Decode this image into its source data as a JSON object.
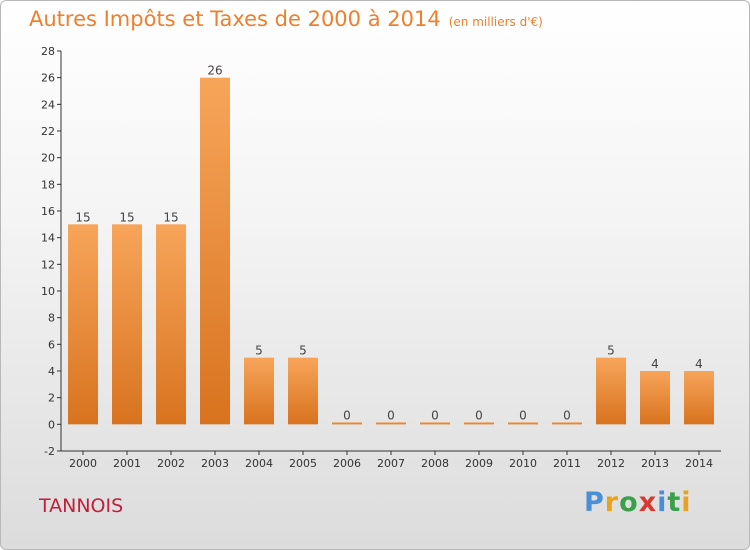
{
  "header": {
    "title": "Autres Impôts et Taxes de 2000 à 2014",
    "unit": "(en milliers d'€)"
  },
  "commune": "TANNOIS",
  "logo": {
    "text": "Proxiti",
    "letters": [
      {
        "ch": "P",
        "color": "#4a8fd6"
      },
      {
        "ch": "r",
        "color": "#e8a21c"
      },
      {
        "ch": "o",
        "color": "#3aa04a"
      },
      {
        "ch": "x",
        "color": "#d43a2f"
      },
      {
        "ch": "i",
        "color": "#4a8fd6"
      },
      {
        "ch": "t",
        "color": "#3aa04a"
      },
      {
        "ch": "i",
        "color": "#e8a21c"
      }
    ]
  },
  "chart_data": {
    "type": "bar",
    "title": "Autres Impôts et Taxes de 2000 à 2014",
    "subtitle": "(en milliers d'€)",
    "categories": [
      "2000",
      "2001",
      "2002",
      "2003",
      "2004",
      "2005",
      "2006",
      "2007",
      "2008",
      "2009",
      "2010",
      "2011",
      "2012",
      "2013",
      "2014"
    ],
    "values": [
      15,
      15,
      15,
      26,
      5,
      5,
      0,
      0,
      0,
      0,
      0,
      0,
      5,
      4,
      4
    ],
    "ylim": [
      -2,
      28
    ],
    "yticks": [
      -2,
      0,
      2,
      4,
      6,
      8,
      10,
      12,
      14,
      16,
      18,
      20,
      22,
      24,
      26,
      28
    ],
    "grid": false,
    "colors": {
      "bar_top": "#f7a55a",
      "bar_bottom": "#d8731f",
      "title": "#ef7f2a",
      "commune": "#c0203a"
    }
  }
}
